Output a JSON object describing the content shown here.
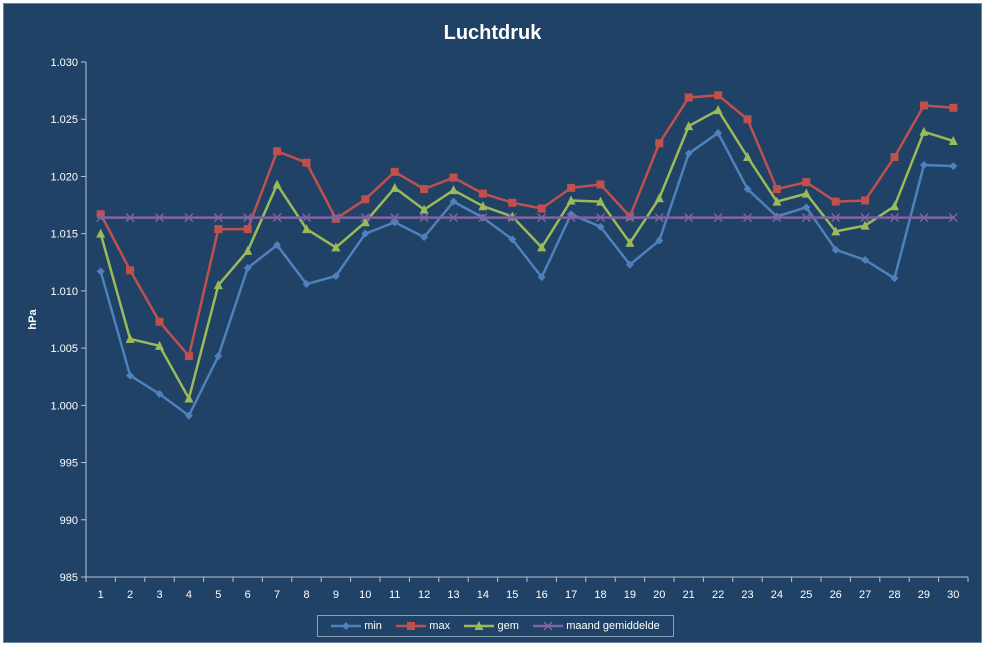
{
  "chart_data": {
    "type": "line",
    "title": "Luchtdruk",
    "xlabel": "",
    "ylabel": "hPa",
    "ylim": [
      985,
      1030
    ],
    "yticks": [
      "985",
      "990",
      "995",
      "1.000",
      "1.005",
      "1.010",
      "1.015",
      "1.020",
      "1.025",
      "1.030"
    ],
    "ytick_values": [
      985,
      990,
      995,
      1000,
      1005,
      1010,
      1015,
      1020,
      1025,
      1030
    ],
    "x": [
      1,
      2,
      3,
      4,
      5,
      6,
      7,
      8,
      9,
      10,
      11,
      12,
      13,
      14,
      15,
      16,
      17,
      18,
      19,
      20,
      21,
      22,
      23,
      24,
      25,
      26,
      27,
      28,
      29,
      30
    ],
    "grid": false,
    "legend_position": "bottom",
    "series": [
      {
        "name": "min",
        "color": "#4f81bd",
        "marker": "diamond",
        "values": [
          1011.7,
          1002.6,
          1001.0,
          999.1,
          1004.3,
          1012.0,
          1014.0,
          1010.6,
          1011.3,
          1015.0,
          1016.0,
          1014.7,
          1017.8,
          1016.4,
          1014.5,
          1011.2,
          1016.7,
          1015.6,
          1012.3,
          1014.4,
          1022.0,
          1023.8,
          1018.9,
          1016.5,
          1017.3,
          1013.6,
          1012.7,
          1011.1,
          1021.0,
          1020.9
        ]
      },
      {
        "name": "max",
        "color": "#c0504d",
        "marker": "square",
        "values": [
          1016.7,
          1011.8,
          1007.3,
          1004.3,
          1015.4,
          1015.4,
          1022.2,
          1021.2,
          1016.3,
          1018.0,
          1020.4,
          1018.9,
          1019.9,
          1018.5,
          1017.7,
          1017.2,
          1019.0,
          1019.3,
          1016.5,
          1022.9,
          1026.9,
          1027.1,
          1025.0,
          1018.9,
          1019.5,
          1017.8,
          1017.9,
          1021.7,
          1026.2,
          1026.0
        ]
      },
      {
        "name": "gem",
        "color": "#9bbb59",
        "marker": "triangle",
        "values": [
          1015.0,
          1005.8,
          1005.2,
          1000.6,
          1010.5,
          1013.5,
          1019.3,
          1015.4,
          1013.8,
          1016.0,
          1019.0,
          1017.1,
          1018.8,
          1017.4,
          1016.5,
          1013.8,
          1017.9,
          1017.8,
          1014.2,
          1018.1,
          1024.4,
          1025.8,
          1021.7,
          1017.8,
          1018.5,
          1015.2,
          1015.7,
          1017.4,
          1023.9,
          1023.1
        ]
      },
      {
        "name": "maand gemiddelde",
        "color": "#8064a2",
        "marker": "x",
        "values": [
          1016.4,
          1016.4,
          1016.4,
          1016.4,
          1016.4,
          1016.4,
          1016.4,
          1016.4,
          1016.4,
          1016.4,
          1016.4,
          1016.4,
          1016.4,
          1016.4,
          1016.4,
          1016.4,
          1016.4,
          1016.4,
          1016.4,
          1016.4,
          1016.4,
          1016.4,
          1016.4,
          1016.4,
          1016.4,
          1016.4,
          1016.4,
          1016.4,
          1016.4,
          1016.4
        ]
      }
    ]
  }
}
